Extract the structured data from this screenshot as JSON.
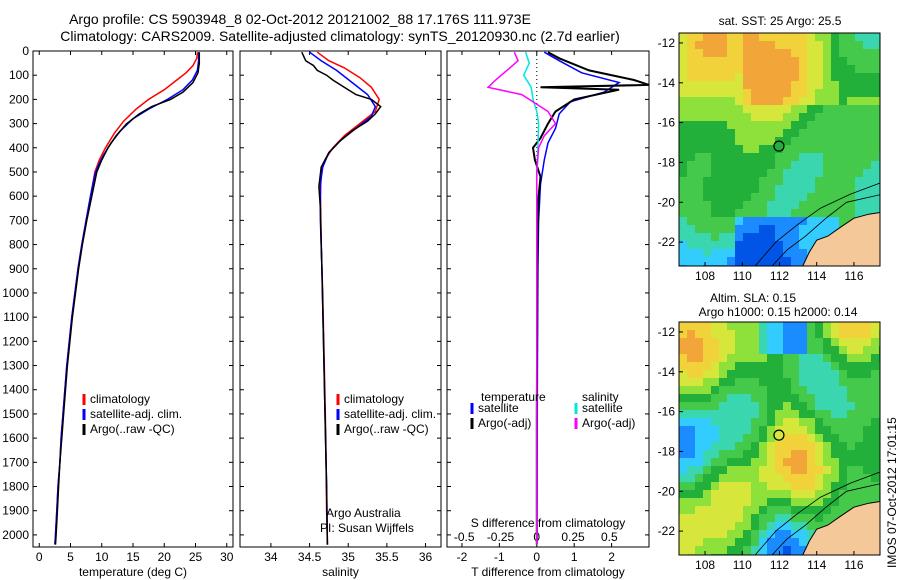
{
  "header": {
    "title1": "Argo profile: CS 5903948_8 02-Oct-2012 20121002_88 17.176S 111.973E",
    "title2": "Climatology: CARS2009. Satellite-adjusted climatology: synTS_20120930.nc (2.7d earlier)"
  },
  "colors": {
    "climatology": "#ff0000",
    "satellite": "#0000ff",
    "argo": "#000000",
    "salinity_satellite": "#00e5e5",
    "salinity_argo": "#ff00ff",
    "land": "#f5c89a"
  },
  "chart_data": [
    {
      "type": "line",
      "id": "temperature",
      "xlabel": "temperature (deg C)",
      "xlim": [
        -1,
        31
      ],
      "ylim": [
        2050,
        0
      ],
      "xticks": [
        "0",
        "5",
        "10",
        "15",
        "20",
        "25",
        "30"
      ],
      "yticks": [
        "0",
        "100",
        "200",
        "300",
        "400",
        "500",
        "600",
        "700",
        "800",
        "900",
        "1000",
        "1100",
        "1200",
        "1300",
        "1400",
        "1500",
        "1600",
        "1700",
        "1800",
        "1900",
        "2000"
      ],
      "legend": [
        "climatology",
        "satellite-adj. clim.",
        "Argo(..raw -QC)"
      ],
      "series": [
        {
          "name": "climatology",
          "points": [
            [
              25.3,
              5
            ],
            [
              25.2,
              30
            ],
            [
              24.6,
              60
            ],
            [
              23.5,
              90
            ],
            [
              22,
              120
            ],
            [
              20,
              160
            ],
            [
              17.5,
              200
            ],
            [
              15.5,
              240
            ],
            [
              13.5,
              290
            ],
            [
              12,
              340
            ],
            [
              10.6,
              400
            ],
            [
              9.6,
              450
            ],
            [
              8.9,
              500
            ],
            [
              8.2,
              600
            ],
            [
              7.5,
              700
            ],
            [
              6.8,
              800
            ],
            [
              6.2,
              900
            ],
            [
              5.7,
              1000
            ],
            [
              5.2,
              1100
            ],
            [
              4.8,
              1200
            ],
            [
              4.4,
              1300
            ],
            [
              4.1,
              1400
            ],
            [
              3.8,
              1500
            ],
            [
              3.5,
              1600
            ],
            [
              3.3,
              1700
            ],
            [
              3.0,
              1800
            ],
            [
              2.8,
              1900
            ],
            [
              2.6,
              2000
            ],
            [
              2.5,
              2040
            ]
          ]
        },
        {
          "name": "satellite-adj. clim.",
          "points": [
            [
              25.5,
              5
            ],
            [
              25.5,
              40
            ],
            [
              25.3,
              80
            ],
            [
              24.5,
              120
            ],
            [
              23,
              160
            ],
            [
              20.5,
              200
            ],
            [
              17.5,
              240
            ],
            [
              15,
              280
            ],
            [
              13,
              330
            ],
            [
              11.5,
              380
            ],
            [
              10.3,
              430
            ],
            [
              9.5,
              470
            ],
            [
              8.9,
              510
            ],
            [
              8.2,
              600
            ],
            [
              7.5,
              700
            ],
            [
              6.8,
              800
            ],
            [
              6.2,
              900
            ],
            [
              5.7,
              1000
            ],
            [
              5.2,
              1100
            ],
            [
              4.8,
              1200
            ],
            [
              4.4,
              1300
            ],
            [
              4.1,
              1400
            ],
            [
              3.8,
              1500
            ],
            [
              3.5,
              1600
            ],
            [
              3.3,
              1700
            ],
            [
              3.0,
              1800
            ],
            [
              2.8,
              1900
            ],
            [
              2.6,
              2000
            ],
            [
              2.5,
              2040
            ]
          ]
        },
        {
          "name": "Argo(..raw -QC)",
          "points": [
            [
              25.6,
              5
            ],
            [
              25.6,
              50
            ],
            [
              25.4,
              90
            ],
            [
              24.6,
              130
            ],
            [
              23,
              170
            ],
            [
              21,
              200
            ],
            [
              18,
              230
            ],
            [
              16,
              260
            ],
            [
              14,
              300
            ],
            [
              12.3,
              350
            ],
            [
              11,
              400
            ],
            [
              10,
              450
            ],
            [
              9.2,
              500
            ],
            [
              8.4,
              600
            ],
            [
              7.6,
              700
            ],
            [
              6.9,
              800
            ],
            [
              6.3,
              900
            ],
            [
              5.8,
              1000
            ],
            [
              5.3,
              1100
            ],
            [
              4.9,
              1200
            ],
            [
              4.5,
              1300
            ],
            [
              4.2,
              1400
            ],
            [
              3.9,
              1500
            ],
            [
              3.6,
              1600
            ],
            [
              3.3,
              1700
            ],
            [
              3.1,
              1800
            ],
            [
              2.9,
              1900
            ],
            [
              2.7,
              2000
            ],
            [
              2.6,
              2040
            ]
          ]
        }
      ]
    },
    {
      "type": "line",
      "id": "salinity",
      "xlabel": "salinity",
      "xlim": [
        33.6,
        36.2
      ],
      "ylim": [
        2050,
        0
      ],
      "xticks": [
        "34",
        "34.5",
        "35",
        "35.5",
        "36"
      ],
      "legend": [
        "climatology",
        "satellite-adj. clim.",
        "Argo(..raw -QC)"
      ],
      "annotation": [
        "Argo Australia",
        "PI: Susan Wijffels"
      ],
      "series": [
        {
          "name": "climatology",
          "points": [
            [
              34.6,
              5
            ],
            [
              34.75,
              40
            ],
            [
              34.95,
              70
            ],
            [
              35.15,
              110
            ],
            [
              35.3,
              150
            ],
            [
              35.4,
              200
            ],
            [
              35.35,
              250
            ],
            [
              35.15,
              300
            ],
            [
              34.95,
              350
            ],
            [
              34.8,
              400
            ],
            [
              34.7,
              450
            ],
            [
              34.65,
              500
            ],
            [
              34.64,
              600
            ],
            [
              34.65,
              800
            ],
            [
              34.67,
              1000
            ],
            [
              34.69,
              1300
            ],
            [
              34.71,
              1600
            ],
            [
              34.72,
              1900
            ],
            [
              34.73,
              2040
            ]
          ]
        },
        {
          "name": "satellite-adj. clim.",
          "points": [
            [
              34.5,
              5
            ],
            [
              34.65,
              40
            ],
            [
              34.85,
              80
            ],
            [
              35.05,
              130
            ],
            [
              35.25,
              180
            ],
            [
              35.35,
              230
            ],
            [
              35.3,
              270
            ],
            [
              35.1,
              320
            ],
            [
              34.9,
              370
            ],
            [
              34.75,
              420
            ],
            [
              34.67,
              480
            ],
            [
              34.64,
              550
            ],
            [
              34.64,
              700
            ],
            [
              34.66,
              900
            ],
            [
              34.68,
              1200
            ],
            [
              34.7,
              1500
            ],
            [
              34.72,
              1800
            ],
            [
              34.73,
              2040
            ]
          ]
        },
        {
          "name": "Argo(..raw -QC)",
          "points": [
            [
              34.4,
              5
            ],
            [
              34.45,
              40
            ],
            [
              34.55,
              60
            ],
            [
              34.6,
              80
            ],
            [
              34.72,
              100
            ],
            [
              34.8,
              120
            ],
            [
              34.9,
              140
            ],
            [
              35.0,
              160
            ],
            [
              35.1,
              180
            ],
            [
              35.3,
              200
            ],
            [
              35.42,
              230
            ],
            [
              35.35,
              260
            ],
            [
              35.25,
              290
            ],
            [
              35.05,
              330
            ],
            [
              34.9,
              370
            ],
            [
              34.75,
              420
            ],
            [
              34.65,
              480
            ],
            [
              34.62,
              560
            ],
            [
              34.64,
              650
            ],
            [
              34.66,
              900
            ],
            [
              34.68,
              1200
            ],
            [
              34.7,
              1500
            ],
            [
              34.72,
              1800
            ],
            [
              34.73,
              2040
            ]
          ]
        }
      ]
    },
    {
      "type": "line",
      "id": "difference",
      "xlabel": "T difference from climatology",
      "x2label": "S difference from climatology",
      "xlim": [
        -2.4,
        3.0
      ],
      "ylim": [
        2050,
        0
      ],
      "xticks": [
        "-2",
        "-1",
        "0",
        "1",
        "2"
      ],
      "x2ticks": [
        "-0.5",
        "-0.25",
        "0",
        "0.25",
        "0.5"
      ],
      "legend_temperature": [
        "temperature",
        "satellite",
        "Argo(-adj)"
      ],
      "legend_salinity": [
        "salinity",
        "satellite",
        "Argo(-adj)"
      ],
      "series": [
        {
          "name": "satellite",
          "points": [
            [
              0.2,
              5
            ],
            [
              0.6,
              40
            ],
            [
              1.2,
              90
            ],
            [
              2.2,
              130
            ],
            [
              1.8,
              170
            ],
            [
              0.9,
              210
            ],
            [
              0.6,
              260
            ],
            [
              0.5,
              320
            ],
            [
              0.3,
              380
            ],
            [
              0.2,
              450
            ],
            [
              0.1,
              550
            ],
            [
              0.05,
              700
            ],
            [
              0.03,
              900
            ],
            [
              0.02,
              1200
            ],
            [
              0.01,
              1600
            ],
            [
              0.0,
              2040
            ]
          ]
        },
        {
          "name": "Argo(-adj)",
          "points": [
            [
              0.3,
              5
            ],
            [
              0.6,
              30
            ],
            [
              1.4,
              80
            ],
            [
              2.6,
              120
            ],
            [
              3.0,
              140
            ],
            [
              0.1,
              150
            ],
            [
              2.2,
              160
            ],
            [
              1.0,
              200
            ],
            [
              0.5,
              250
            ],
            [
              0.3,
              300
            ],
            [
              0.1,
              360
            ],
            [
              -0.1,
              400
            ],
            [
              -0.05,
              450
            ],
            [
              0.1,
              520
            ],
            [
              0.05,
              600
            ],
            [
              0.02,
              800
            ],
            [
              0.01,
              1100
            ],
            [
              0.0,
              1500
            ],
            [
              0.0,
              2040
            ]
          ]
        },
        {
          "name": "salinity satellite",
          "points": [
            [
              -0.3,
              5
            ],
            [
              -0.2,
              50
            ],
            [
              -0.35,
              100
            ],
            [
              -0.15,
              150
            ],
            [
              -0.1,
              200
            ],
            [
              0.0,
              250
            ],
            [
              0.05,
              300
            ],
            [
              0.03,
              400
            ],
            [
              0.0,
              500
            ],
            [
              0.0,
              800
            ],
            [
              0.0,
              1200
            ],
            [
              0.0,
              2040
            ]
          ]
        },
        {
          "name": "salinity Argo(-adj)",
          "points": [
            [
              -0.6,
              5
            ],
            [
              -0.5,
              40
            ],
            [
              -0.8,
              80
            ],
            [
              -1.1,
              120
            ],
            [
              -1.3,
              150
            ],
            [
              -0.4,
              180
            ],
            [
              -0.2,
              200
            ],
            [
              0.3,
              250
            ],
            [
              0.5,
              300
            ],
            [
              0.2,
              350
            ],
            [
              0.05,
              400
            ],
            [
              0.0,
              500
            ],
            [
              0.0,
              800
            ],
            [
              0.0,
              1200
            ],
            [
              0.0,
              2040
            ]
          ]
        }
      ]
    },
    {
      "type": "heatmap",
      "id": "sst-map",
      "title": "sat. SST: 25  Argo: 25.5",
      "xticks": [
        "108",
        "110",
        "112",
        "114",
        "116"
      ],
      "yticks": [
        "-12",
        "-14",
        "-16",
        "-18",
        "-20",
        "-22"
      ],
      "xlim": [
        106.6,
        117.4
      ],
      "ylim": [
        -23.2,
        -11.5
      ],
      "marker": [
        111.97,
        -17.18
      ]
    },
    {
      "type": "heatmap",
      "id": "sla-map",
      "title": "Altim. SLA: 0.15",
      "subtitle": "Argo h1000: 0.15  h2000: 0.14",
      "xticks": [
        "108",
        "110",
        "112",
        "114",
        "116"
      ],
      "yticks": [
        "-12",
        "-14",
        "-16",
        "-18",
        "-20",
        "-22"
      ],
      "xlim": [
        106.6,
        117.4
      ],
      "ylim": [
        -23.2,
        -11.5
      ],
      "marker": [
        111.97,
        -17.18
      ]
    }
  ],
  "footer": {
    "stamp": "IMOS 07-Oct-2012 17:01:15"
  }
}
